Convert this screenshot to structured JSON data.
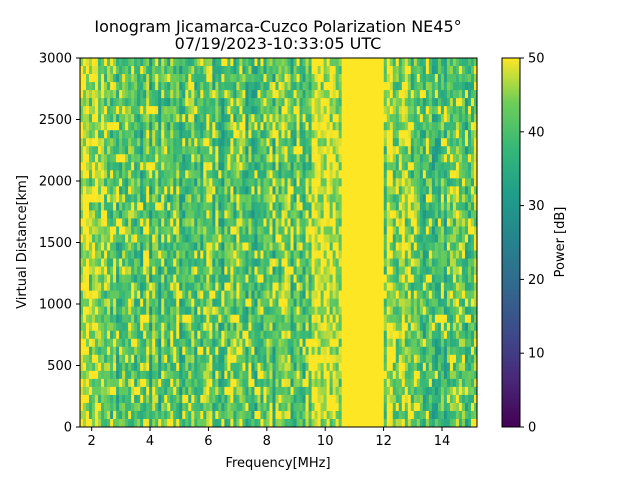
{
  "chart_data": {
    "type": "heatmap",
    "title": "Ionogram Jicamarca-Cuzco Polarization NE45°",
    "subtitle": "07/19/2023-10:33:05 UTC",
    "xlabel": "Frequency[MHz]",
    "ylabel": "Virtual Distance[km]",
    "xlim": [
      1.6,
      15.2
    ],
    "ylim": [
      0,
      3000
    ],
    "x_ticks": [
      2,
      4,
      6,
      8,
      10,
      12,
      14
    ],
    "y_ticks": [
      0,
      500,
      1000,
      1500,
      2000,
      2500,
      3000
    ],
    "colorbar": {
      "label": "Power [dB]",
      "range": [
        0,
        50
      ],
      "ticks": [
        0,
        10,
        20,
        30,
        40,
        50
      ],
      "colormap": "viridis"
    },
    "grid": false,
    "regions": [
      {
        "freq_range": [
          1.6,
          2.6
        ],
        "typical_power_db": 46
      },
      {
        "freq_range": [
          2.6,
          9.5
        ],
        "typical_power_db": 40
      },
      {
        "freq_range": [
          9.5,
          10.6
        ],
        "typical_power_db": 46
      },
      {
        "freq_range": [
          10.6,
          12.0
        ],
        "typical_power_db": 50
      },
      {
        "freq_range": [
          12.0,
          12.8
        ],
        "typical_power_db": 45
      },
      {
        "freq_range": [
          12.8,
          15.2
        ],
        "typical_power_db": 40
      }
    ]
  }
}
